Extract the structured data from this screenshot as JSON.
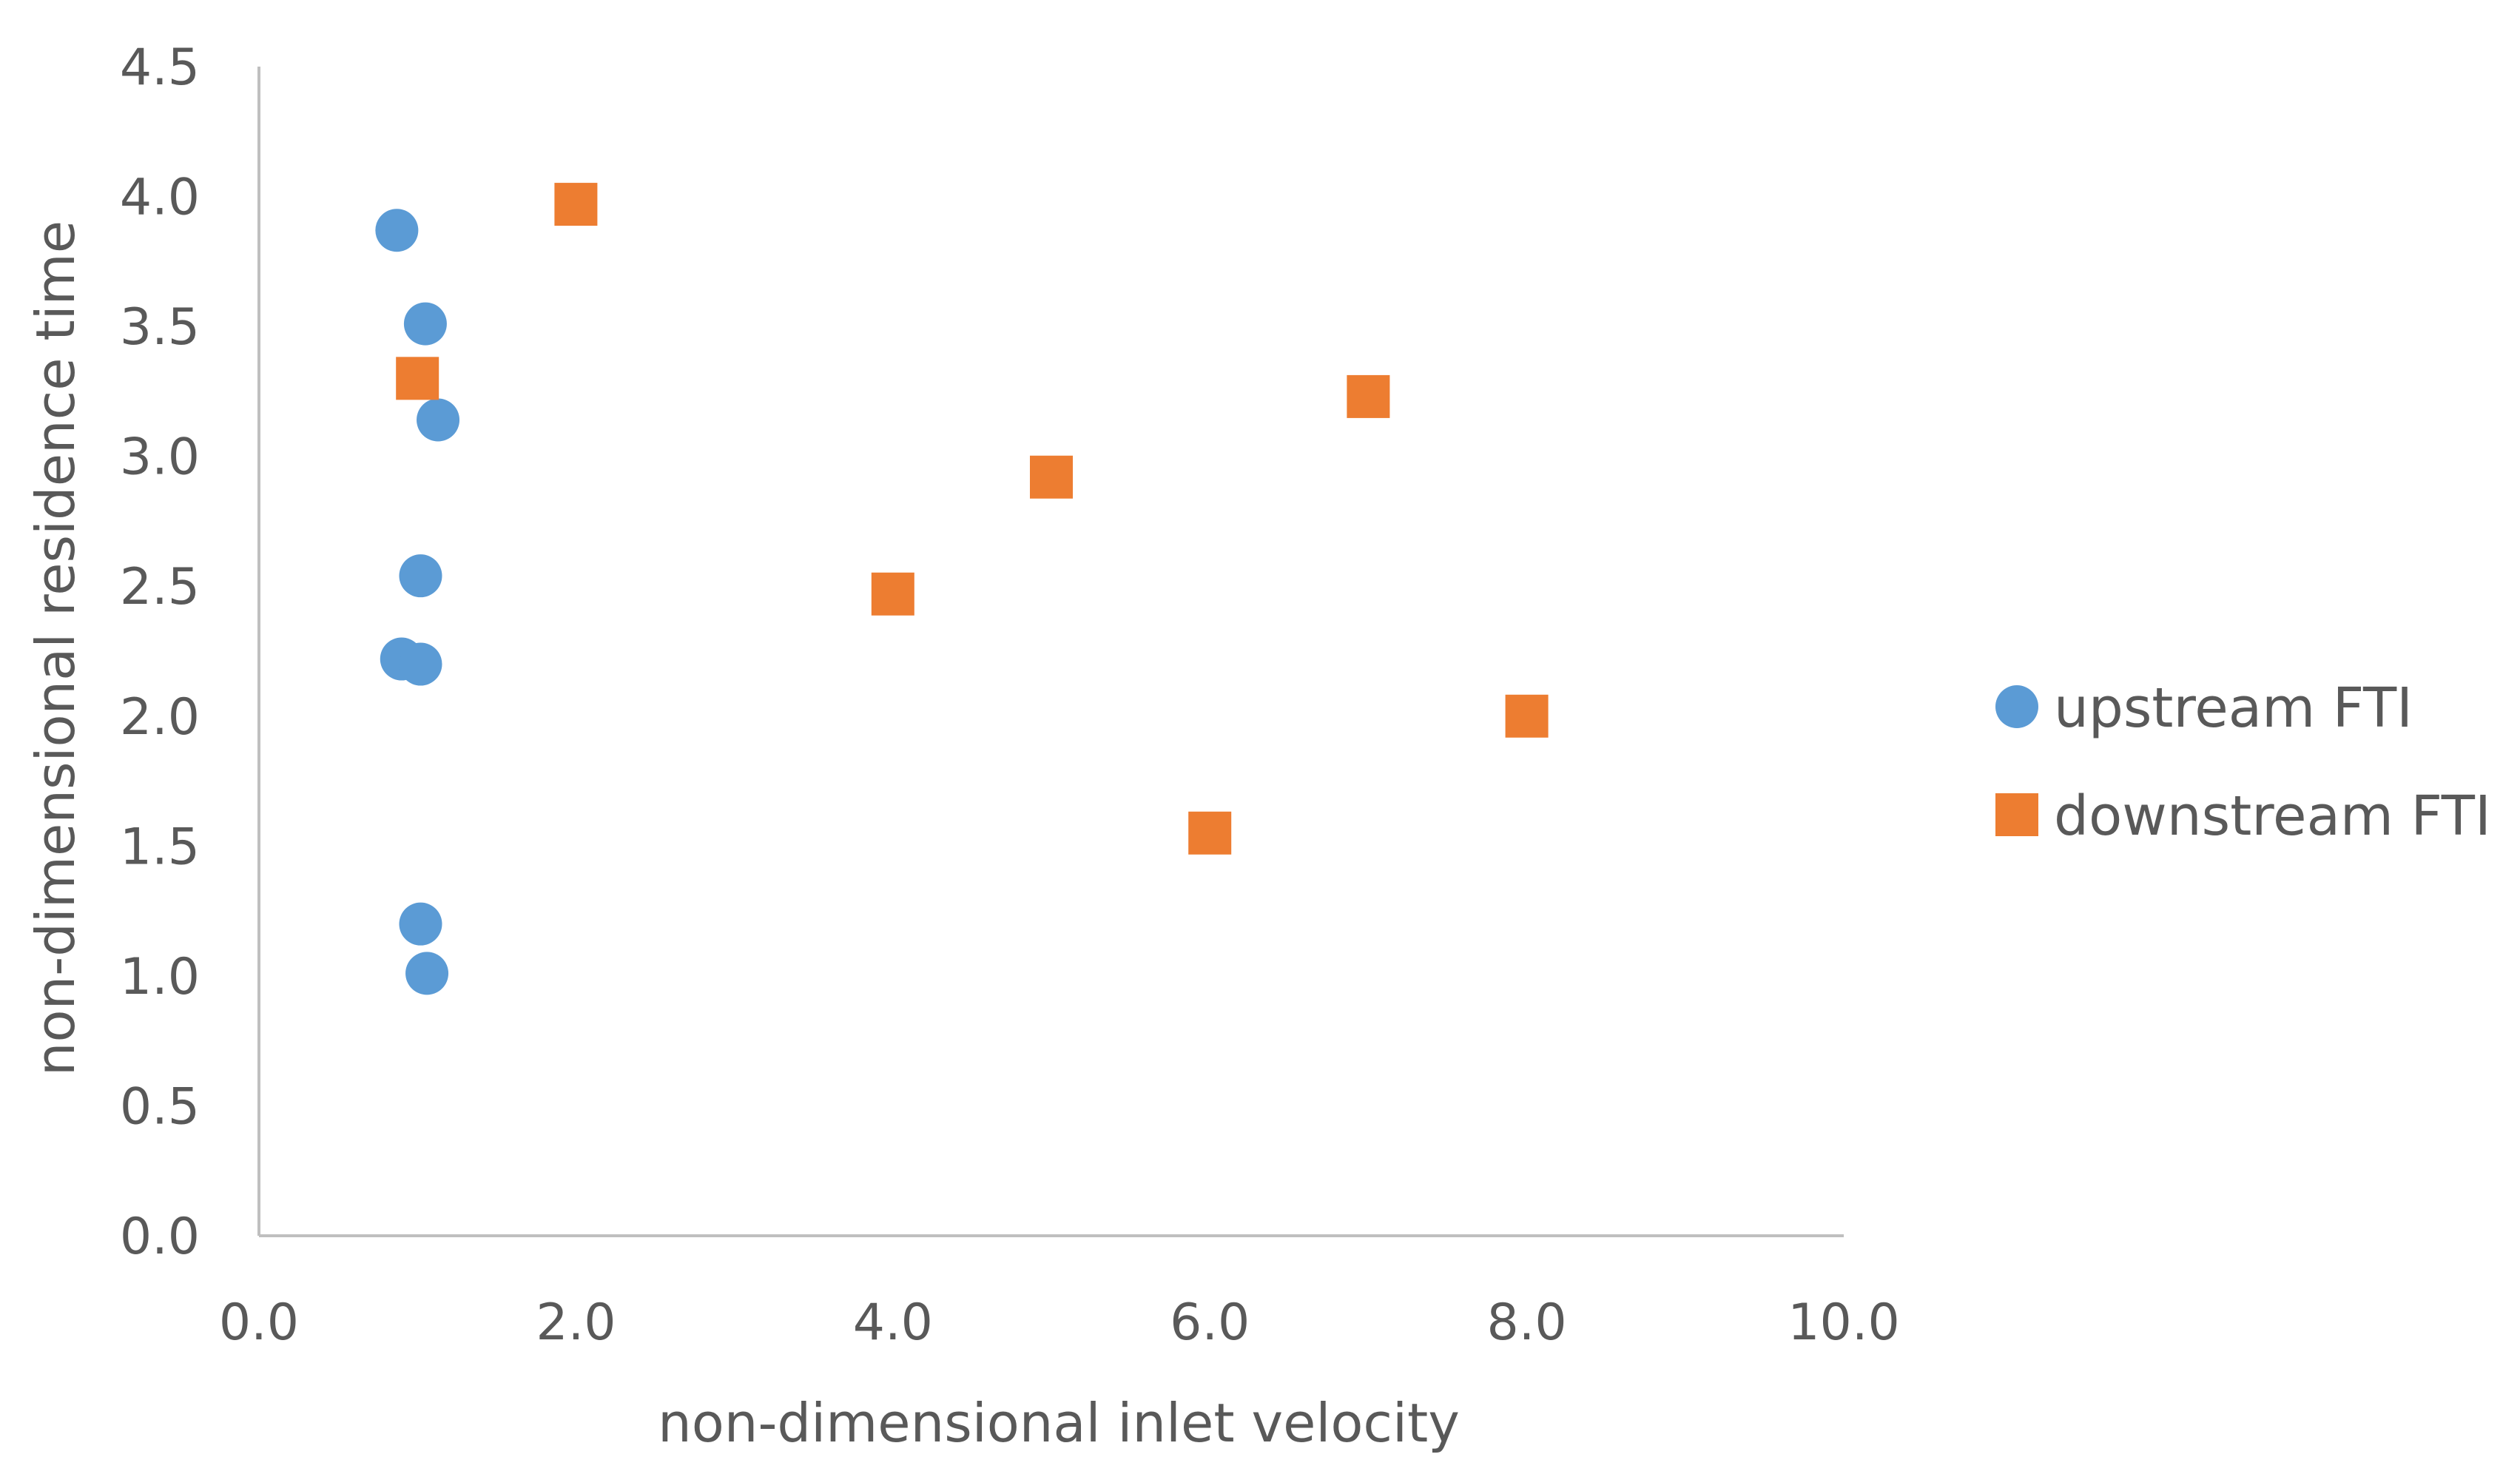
{
  "chart_data": {
    "type": "scatter",
    "title": "",
    "xlabel": "non-dimensional inlet velocity",
    "ylabel": "non-dimensional residence time",
    "xlim": [
      0,
      10
    ],
    "ylim": [
      0,
      4.5
    ],
    "x_ticks": [
      0,
      2,
      4,
      6,
      8,
      10
    ],
    "y_ticks": [
      0,
      0.5,
      1,
      1.5,
      2,
      2.5,
      3,
      3.5,
      4,
      4.5
    ],
    "x_tick_labels": [
      "0.0",
      "2.0",
      "4.0",
      "6.0",
      "8.0",
      "10.0"
    ],
    "y_tick_labels": [
      "0.0",
      "0.5",
      "1.0",
      "1.5",
      "2.0",
      "2.5",
      "3.0",
      "3.5",
      "4.0",
      "4.5"
    ],
    "grid": false,
    "legend_position": "right",
    "series": [
      {
        "name": "upstream FTI",
        "marker": "circle",
        "color": "#5B9BD5",
        "points": [
          {
            "x": 0.87,
            "y": 3.87
          },
          {
            "x": 1.05,
            "y": 3.51
          },
          {
            "x": 1.13,
            "y": 3.14
          },
          {
            "x": 1.02,
            "y": 2.54
          },
          {
            "x": 0.9,
            "y": 2.22
          },
          {
            "x": 1.02,
            "y": 2.2
          },
          {
            "x": 1.02,
            "y": 1.2
          },
          {
            "x": 1.06,
            "y": 1.01
          }
        ]
      },
      {
        "name": "downstream FTI",
        "marker": "square",
        "color": "#ED7D31",
        "points": [
          {
            "x": 2.0,
            "y": 3.97
          },
          {
            "x": 1.0,
            "y": 3.3
          },
          {
            "x": 7.0,
            "y": 3.23
          },
          {
            "x": 5.0,
            "y": 2.92
          },
          {
            "x": 4.0,
            "y": 2.47
          },
          {
            "x": 8.0,
            "y": 2.0
          },
          {
            "x": 6.0,
            "y": 1.55
          }
        ]
      }
    ],
    "axis_color": "#BFBFBF",
    "text_color": "#595959"
  }
}
